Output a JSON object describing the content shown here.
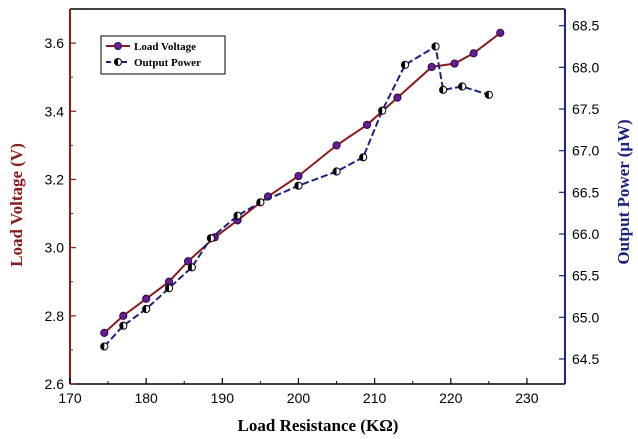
{
  "chart_data": {
    "type": "line",
    "title": "",
    "xlabel": "Load Resistance (KΩ)",
    "ylabel_left": "Load Voltage (V)",
    "ylabel_right": "Output Power (μW)",
    "xlim": [
      170,
      235
    ],
    "xticks": [
      170,
      180,
      190,
      200,
      210,
      220,
      230
    ],
    "ylim_left": [
      2.6,
      3.7
    ],
    "yticks_left": [
      "2.6",
      "2.8",
      "3.0",
      "3.2",
      "3.4",
      "3.6"
    ],
    "ylim_right": [
      64.2,
      68.7
    ],
    "yticks_right": [
      "64.5",
      "65.0",
      "65.5",
      "66.0",
      "66.5",
      "67.0",
      "67.5",
      "68.0",
      "68.5"
    ],
    "grid": false,
    "legend_position": "top-left",
    "colors": {
      "voltage_line": "#8b1a1a",
      "voltage_marker": "#6a1b9a",
      "power_line": "#1a237e",
      "left_axis": "#8b1a1a",
      "right_axis": "#1a237e"
    },
    "series": [
      {
        "name": "Load Voltage",
        "axis": "left",
        "x": [
          174.5,
          177,
          180,
          183,
          185.5,
          189,
          192,
          196,
          200,
          205,
          209,
          213,
          217.5,
          220.5,
          223,
          226.5
        ],
        "y": [
          2.75,
          2.8,
          2.85,
          2.9,
          2.96,
          3.03,
          3.08,
          3.15,
          3.21,
          3.3,
          3.36,
          3.44,
          3.53,
          3.54,
          3.57,
          3.63
        ]
      },
      {
        "name": "Output Power",
        "axis": "right",
        "x": [
          174.5,
          177,
          180,
          183,
          186,
          188.5,
          192,
          195,
          200,
          205,
          208.5,
          211,
          214,
          218,
          219,
          221.5,
          225
        ],
        "y": [
          64.65,
          64.9,
          65.1,
          65.35,
          65.6,
          65.95,
          66.22,
          66.38,
          66.58,
          66.75,
          66.92,
          67.48,
          68.03,
          68.25,
          67.73,
          67.77,
          67.67
        ]
      }
    ]
  }
}
